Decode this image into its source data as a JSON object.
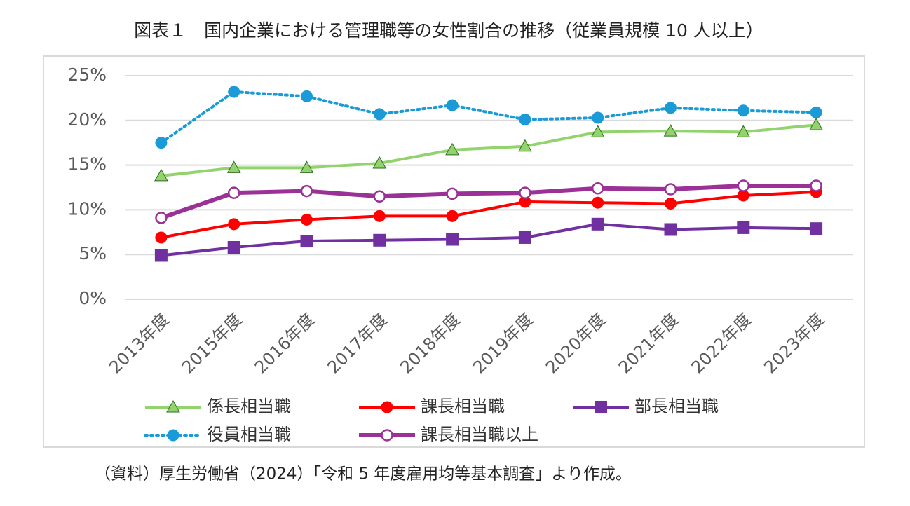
{
  "chart_data": {
    "type": "line",
    "title": "図表１　国内企業における管理職等の女性割合の推移（従業員規模 10 人以上）",
    "note": "（資料）厚生労働省（2024）「令和 5 年度雇用均等基本調査」より作成。",
    "categories": [
      "2013年度",
      "2015年度",
      "2016年度",
      "2017年度",
      "2018年度",
      "2019年度",
      "2020年度",
      "2021年度",
      "2022年度",
      "2023年度"
    ],
    "ylim": [
      0,
      25
    ],
    "yticks": [
      {
        "value": 0,
        "label": "0%"
      },
      {
        "value": 5,
        "label": "5%"
      },
      {
        "value": 10,
        "label": "10%"
      },
      {
        "value": 15,
        "label": "15%"
      },
      {
        "value": 20,
        "label": "20%"
      },
      {
        "value": 25,
        "label": "25%"
      }
    ],
    "grid": true,
    "legend": "bottom",
    "series": [
      {
        "name": "係長相当職",
        "color": "#92d36e",
        "marker": "triangle",
        "line_style": "solid",
        "values": [
          13.8,
          14.7,
          14.7,
          15.2,
          16.7,
          17.1,
          18.7,
          18.8,
          18.7,
          19.5
        ]
      },
      {
        "name": "課長相当職",
        "color": "#ff0000",
        "marker": "circle",
        "line_style": "solid",
        "values": [
          6.9,
          8.4,
          8.9,
          9.3,
          9.3,
          10.9,
          10.8,
          10.7,
          11.6,
          12.0
        ]
      },
      {
        "name": "部長相当職",
        "color": "#7030a0",
        "marker": "square",
        "line_style": "solid",
        "values": [
          4.9,
          5.8,
          6.5,
          6.6,
          6.7,
          6.9,
          8.4,
          7.8,
          8.0,
          7.9
        ]
      },
      {
        "name": "役員相当職",
        "color": "#1a9ad6",
        "marker": "circle",
        "line_style": "dotted",
        "values": [
          17.5,
          23.2,
          22.7,
          20.7,
          21.7,
          20.1,
          20.3,
          21.4,
          21.1,
          20.9
        ]
      },
      {
        "name": "課長相当職以上",
        "color": "#9b3197",
        "marker": "open-circle",
        "line_style": "solid",
        "values": [
          9.1,
          11.9,
          12.1,
          11.5,
          11.8,
          11.9,
          12.4,
          12.3,
          12.7,
          12.7
        ]
      }
    ]
  }
}
